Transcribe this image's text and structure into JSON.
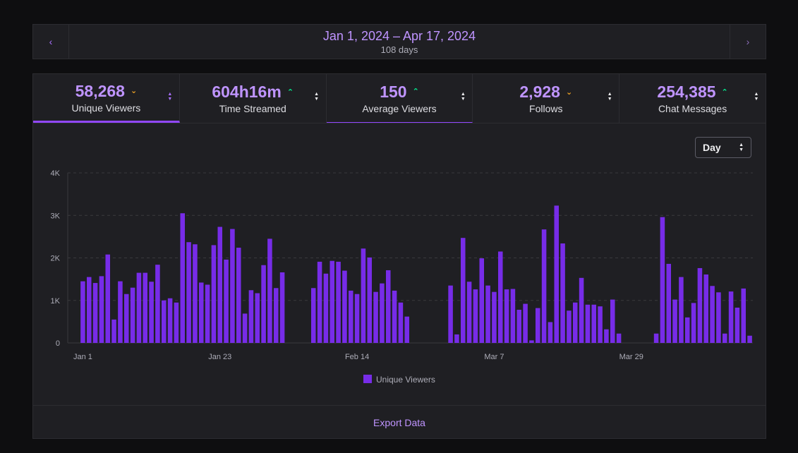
{
  "date_nav": {
    "range": "Jan 1, 2024 – Apr 17, 2024",
    "days": "108 days",
    "prev_icon": "chevron-left-icon",
    "next_icon": "chevron-right-icon"
  },
  "metrics": [
    {
      "value": "58,268",
      "label": "Unique Viewers",
      "trend": "down"
    },
    {
      "value": "604h16m",
      "label": "Time Streamed",
      "trend": "up"
    },
    {
      "value": "150",
      "label": "Average Viewers",
      "trend": "up"
    },
    {
      "value": "2,928",
      "label": "Follows",
      "trend": "down"
    },
    {
      "value": "254,385",
      "label": "Chat Messages",
      "trend": "up"
    }
  ],
  "interval": {
    "selected": "Day"
  },
  "export_label": "Export Data",
  "colors": {
    "bar": "#772ce8",
    "accent": "#bf94ff",
    "up": "#00f593",
    "down": "#f5a623"
  },
  "chart_data": {
    "type": "bar",
    "ylim": [
      0,
      4000
    ],
    "y_ticks": [
      0,
      1000,
      2000,
      3000,
      4000
    ],
    "y_tick_labels": [
      "0",
      "1K",
      "2K",
      "3K",
      "4K"
    ],
    "x_tick_labels": [
      "Jan 1",
      "Jan 23",
      "Feb 14",
      "Mar 7",
      "Mar 29"
    ],
    "x_tick_indices": [
      0,
      22,
      44,
      66,
      88
    ],
    "grid": true,
    "legend": "bottom-center",
    "series": [
      {
        "name": "Unique Viewers",
        "values": [
          1450,
          1550,
          1410,
          1570,
          2080,
          550,
          1450,
          1150,
          1300,
          1650,
          1650,
          1440,
          1840,
          1000,
          1050,
          950,
          3050,
          2370,
          2320,
          1420,
          1370,
          2300,
          2730,
          1960,
          2680,
          2240,
          690,
          1240,
          1170,
          1830,
          2450,
          1290,
          1660,
          0,
          0,
          0,
          0,
          1290,
          1910,
          1630,
          1930,
          1910,
          1700,
          1230,
          1150,
          2220,
          2010,
          1200,
          1400,
          1710,
          1230,
          950,
          620,
          0,
          0,
          0,
          0,
          0,
          0,
          1350,
          200,
          2470,
          1440,
          1260,
          1990,
          1350,
          1200,
          2150,
          1260,
          1270,
          780,
          920,
          60,
          820,
          2670,
          490,
          3230,
          2340,
          760,
          950,
          1530,
          900,
          900,
          860,
          320,
          1020,
          220,
          0,
          0,
          0,
          0,
          0,
          220,
          2960,
          1860,
          1020,
          1550,
          600,
          940,
          1760,
          1610,
          1340,
          1190,
          220,
          1210,
          830,
          1280,
          170
        ]
      }
    ]
  }
}
